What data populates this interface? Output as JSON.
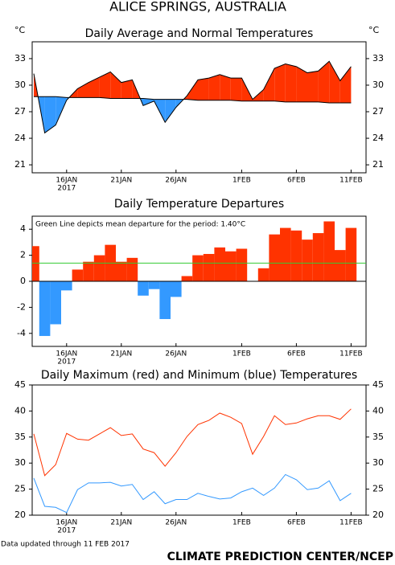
{
  "page_title": "ALICE SPRINGS, AUSTRALIA",
  "footer_note": "Data updated through 11 FEB 2017",
  "credit": "CLIMATE PREDICTION CENTER/NCEP",
  "chart_data": [
    {
      "type": "departure_area",
      "title": "Daily Average and Normal Temperatures",
      "y_label": "°C",
      "y2_label": "°C",
      "categories": [
        null,
        null,
        null,
        "16JAN",
        null,
        null,
        null,
        null,
        "21JAN",
        null,
        null,
        null,
        null,
        "26JAN",
        null,
        null,
        null,
        null,
        null,
        "1FEB",
        null,
        null,
        null,
        null,
        "6FEB",
        null,
        null,
        null,
        null,
        "11FEB"
      ],
      "x_sublabel": "2017",
      "values": [
        31.3,
        24.6,
        25.5,
        28.3,
        29.6,
        30.3,
        30.9,
        31.5,
        30.3,
        30.6,
        27.7,
        28.2,
        25.8,
        27.5,
        28.8,
        30.6,
        30.8,
        31.2,
        30.8,
        30.8,
        28.4,
        29.5,
        31.9,
        32.4,
        32.1,
        31.4,
        31.6,
        32.7,
        30.5,
        32.1
      ],
      "normal": [
        28.7,
        28.7,
        28.7,
        28.6,
        28.6,
        28.6,
        28.6,
        28.5,
        28.5,
        28.5,
        28.5,
        28.4,
        28.4,
        28.4,
        28.4,
        28.3,
        28.3,
        28.3,
        28.3,
        28.2,
        28.2,
        28.2,
        28.2,
        28.1,
        28.1,
        28.1,
        28.1,
        28.0,
        28.0,
        28.0
      ],
      "above_color": "#ff3300",
      "below_color": "#3399ff",
      "ylim": [
        20.1,
        34.9
      ],
      "yticks": [
        21,
        24,
        27,
        30,
        33
      ],
      "y2lim": [
        20.1,
        34.9
      ],
      "y2ticks": [
        21,
        24,
        27,
        30,
        33
      ]
    },
    {
      "type": "bar",
      "title": "Daily Temperature Departures",
      "annotation": "Green Line depicts mean departure for the period: 1.40°C",
      "categories": [
        null,
        null,
        null,
        "16JAN",
        null,
        null,
        null,
        null,
        "21JAN",
        null,
        null,
        null,
        null,
        "26JAN",
        null,
        null,
        null,
        null,
        null,
        "1FEB",
        null,
        null,
        null,
        null,
        "6FEB",
        null,
        null,
        null,
        null,
        "11FEB"
      ],
      "x_sublabel": "2017",
      "values": [
        2.7,
        -4.2,
        -3.3,
        -0.7,
        0.9,
        1.5,
        2.0,
        2.8,
        1.5,
        1.8,
        -1.1,
        -0.6,
        -2.9,
        -1.2,
        0.4,
        2.0,
        2.1,
        2.6,
        2.3,
        2.5,
        0,
        1.0,
        3.6,
        4.1,
        3.9,
        3.2,
        3.7,
        4.6,
        2.4,
        4.1
      ],
      "mean": 1.4,
      "mean_color": "#33cc33",
      "positive_color": "#ff3300",
      "negative_color": "#3399ff",
      "ylim": [
        -5,
        5
      ],
      "yticks": [
        -4,
        -2,
        0,
        2,
        4
      ]
    },
    {
      "type": "line",
      "title": "Daily Maximum (red) and Minimum (blue) Temperatures",
      "categories": [
        null,
        null,
        null,
        "16JAN",
        null,
        null,
        null,
        null,
        "21JAN",
        null,
        null,
        null,
        null,
        "26JAN",
        null,
        null,
        null,
        null,
        null,
        "1FEB",
        null,
        null,
        null,
        null,
        "6FEB",
        null,
        null,
        null,
        null,
        "11FEB"
      ],
      "x_sublabel": "2017",
      "series": [
        {
          "color": "#ff3300",
          "values": [
            35.6,
            27.6,
            29.7,
            35.7,
            34.6,
            34.4,
            35.6,
            36.8,
            35.3,
            35.6,
            32.7,
            32.0,
            29.4,
            32.0,
            35.1,
            37.4,
            38.2,
            39.6,
            38.8,
            37.6,
            31.7,
            35.1,
            39.1,
            37.4,
            37.7,
            38.5,
            39.1,
            39.1,
            38.4,
            40.4
          ]
        },
        {
          "color": "#3399ff",
          "values": [
            27.1,
            21.7,
            21.5,
            20.5,
            24.9,
            26.2,
            26.2,
            26.3,
            25.6,
            25.9,
            23.0,
            24.5,
            22.2,
            23.0,
            23.0,
            24.2,
            23.6,
            23.1,
            23.3,
            24.5,
            25.2,
            23.8,
            25.2,
            27.8,
            26.8,
            24.9,
            25.2,
            26.6,
            22.8,
            24.2
          ]
        }
      ],
      "ylim": [
        20,
        45
      ],
      "yticks": [
        20,
        25,
        30,
        35,
        40,
        45
      ],
      "y2lim": [
        20,
        45
      ],
      "y2ticks": [
        20,
        25,
        30,
        35,
        40,
        45
      ]
    }
  ]
}
